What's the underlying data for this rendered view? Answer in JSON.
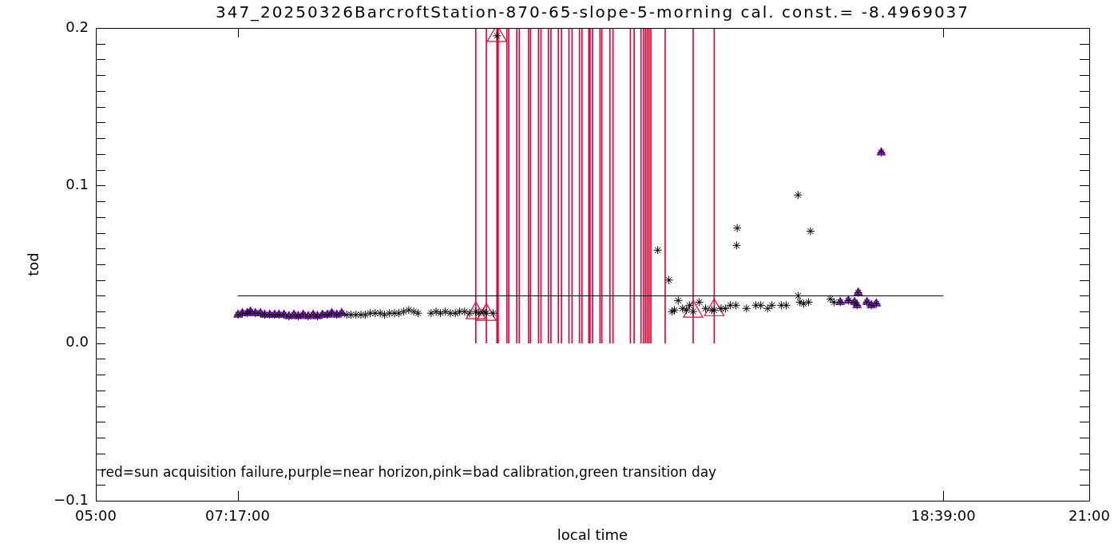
{
  "chart_data": {
    "type": "scatter",
    "title": "347_20250326BarcroftStation-870-65-slope-5-morning cal. const.= -8.4969037",
    "xlabel": "local time",
    "ylabel": "tod",
    "xlim": [
      5,
      21
    ],
    "xticks": [
      {
        "value": 5,
        "label": "05:00"
      },
      {
        "value": 7.2833,
        "label": "07:17:00"
      },
      {
        "value": 18.65,
        "label": "18:39:00"
      },
      {
        "value": 21,
        "label": "21:00"
      }
    ],
    "ylim": [
      -0.1,
      0.2
    ],
    "yticks": [
      {
        "value": -0.1,
        "label": "−0.1"
      },
      {
        "value": -0.09,
        "label": null
      },
      {
        "value": -0.08,
        "label": null
      },
      {
        "value": -0.07,
        "label": null
      },
      {
        "value": -0.06,
        "label": null
      },
      {
        "value": -0.05,
        "label": null
      },
      {
        "value": -0.04,
        "label": null
      },
      {
        "value": -0.03,
        "label": null
      },
      {
        "value": -0.02,
        "label": null
      },
      {
        "value": -0.01,
        "label": null
      },
      {
        "value": 0,
        "label": "0.0"
      },
      {
        "value": 0.01,
        "label": null
      },
      {
        "value": 0.02,
        "label": null
      },
      {
        "value": 0.03,
        "label": null
      },
      {
        "value": 0.04,
        "label": null
      },
      {
        "value": 0.05,
        "label": null
      },
      {
        "value": 0.06,
        "label": null
      },
      {
        "value": 0.07,
        "label": null
      },
      {
        "value": 0.08,
        "label": null
      },
      {
        "value": 0.09,
        "label": null
      },
      0.1,
      {
        "value": 0.11,
        "label": null
      },
      {
        "value": 0.12,
        "label": null
      },
      {
        "value": 0.13,
        "label": null
      },
      {
        "value": 0.14,
        "label": null
      },
      {
        "value": 0.15,
        "label": null
      },
      {
        "value": 0.16,
        "label": null
      },
      {
        "value": 0.17,
        "label": null
      },
      {
        "value": 0.18,
        "label": null
      },
      {
        "value": 0.19,
        "label": null
      },
      0.2
    ],
    "marker": "cross",
    "annotations": [
      "red=sun acquisition failure,purple=near horizon,pink=bad calibration,green transition day"
    ],
    "series": [
      {
        "type": "bar",
        "color": "#e8003a",
        "x": [
          11.12,
          11.29,
          11.46,
          11.48,
          11.62,
          11.65,
          11.78,
          11.82,
          11.97,
          12.0,
          12.13,
          12.17,
          12.29,
          12.33,
          12.45,
          12.5,
          12.62,
          12.67,
          12.79,
          12.83,
          12.94,
          12.96,
          13.0,
          13.12,
          13.15,
          13.28,
          13.33,
          13.61,
          13.67,
          13.78,
          13.82,
          13.85,
          13.88,
          13.91,
          13.94,
          14.17,
          14.62,
          14.96
        ],
        "values": [
          0.2,
          0.2,
          0.2,
          0.2,
          0.2,
          0.2,
          0.2,
          0.2,
          0.2,
          0.2,
          0.2,
          0.2,
          0.2,
          0.2,
          0.2,
          0.2,
          0.2,
          0.2,
          0.2,
          0.2,
          0.2,
          0.2,
          0.2,
          0.2,
          0.2,
          0.2,
          0.2,
          0.2,
          0.2,
          0.2,
          0.2,
          0.2,
          0.2,
          0.2,
          0.2,
          0.2,
          0.2,
          0.2
        ]
      },
      {
        "type": "line",
        "color": "#000000",
        "marker": "none",
        "x": [
          7.2833,
          18.65
        ],
        "values": [
          0.03,
          0.03
        ]
      },
      {
        "color": "#e8003a",
        "marker": "triangle",
        "x": [
          11.12,
          11.29,
          11.46,
          14.62,
          14.96
        ],
        "values": [
          0.019,
          0.018,
          0.195,
          0.02,
          0.021
        ]
      },
      {
        "color": "#9400f0",
        "marker": "triangle",
        "x": [
          7.29,
          7.36,
          7.44,
          7.49,
          7.57,
          7.65,
          7.72,
          7.8,
          7.88,
          7.95,
          8.03,
          8.11,
          8.19,
          8.26,
          8.34,
          8.42,
          8.5,
          8.57,
          8.65,
          8.73,
          8.8,
          8.88,
          8.96,
          16.99,
          17.12,
          17.22,
          17.26,
          17.28,
          17.42,
          17.49,
          17.57,
          17.65
        ],
        "values": [
          0.018,
          0.019,
          0.019,
          0.02,
          0.019,
          0.019,
          0.018,
          0.018,
          0.018,
          0.018,
          0.018,
          0.017,
          0.018,
          0.017,
          0.018,
          0.017,
          0.018,
          0.017,
          0.018,
          0.018,
          0.019,
          0.018,
          0.019,
          0.026,
          0.027,
          0.026,
          0.024,
          0.032,
          0.026,
          0.024,
          0.025,
          0.121
        ]
      },
      {
        "color": "#000000",
        "x": [
          7.29,
          7.36,
          7.44,
          7.49,
          7.57,
          7.65,
          7.72,
          7.8,
          7.88,
          7.95,
          8.03,
          8.11,
          8.19,
          8.26,
          8.34,
          8.42,
          8.5,
          8.57,
          8.65,
          8.73,
          8.8,
          8.88,
          8.96,
          9.04,
          9.11,
          9.19,
          9.27,
          9.34,
          9.42,
          9.5,
          9.58,
          9.65,
          9.73,
          9.81,
          9.88,
          9.96,
          10.04,
          10.12,
          10.19,
          10.4,
          10.48,
          10.55,
          10.63,
          10.71,
          10.79,
          10.86,
          10.94,
          11.02,
          11.12,
          11.17,
          11.25,
          11.29,
          11.4,
          11.46,
          14.05,
          14.23,
          14.28,
          14.32,
          14.38,
          14.45,
          14.51,
          14.56,
          14.62,
          14.72,
          14.82,
          14.92,
          14.96,
          15.07,
          15.14,
          15.22,
          15.31,
          15.32,
          15.33,
          15.48,
          15.63,
          15.71,
          15.82,
          15.89,
          16.04,
          16.12,
          16.31,
          16.31,
          16.34,
          16.4,
          16.48,
          16.51,
          16.83,
          16.89,
          16.99,
          17.12,
          17.22,
          17.26,
          17.28,
          17.42,
          17.49,
          17.57,
          17.65
        ],
        "values": [
          0.018,
          0.019,
          0.019,
          0.02,
          0.019,
          0.019,
          0.018,
          0.018,
          0.018,
          0.018,
          0.018,
          0.017,
          0.018,
          0.017,
          0.018,
          0.017,
          0.018,
          0.017,
          0.018,
          0.018,
          0.019,
          0.018,
          0.019,
          0.018,
          0.018,
          0.018,
          0.018,
          0.018,
          0.019,
          0.019,
          0.019,
          0.018,
          0.019,
          0.019,
          0.019,
          0.02,
          0.021,
          0.02,
          0.019,
          0.019,
          0.02,
          0.019,
          0.02,
          0.019,
          0.019,
          0.02,
          0.02,
          0.019,
          0.02,
          0.019,
          0.02,
          0.019,
          0.019,
          0.195,
          0.059,
          0.04,
          0.02,
          0.021,
          0.027,
          0.022,
          0.021,
          0.024,
          0.02,
          0.026,
          0.022,
          0.021,
          0.021,
          0.022,
          0.022,
          0.024,
          0.024,
          0.062,
          0.073,
          0.022,
          0.024,
          0.024,
          0.022,
          0.024,
          0.024,
          0.024,
          0.094,
          0.03,
          0.026,
          0.025,
          0.026,
          0.071,
          0.028,
          0.026,
          0.026,
          0.027,
          0.026,
          0.024,
          0.032,
          0.026,
          0.024,
          0.025,
          0.121
        ]
      }
    ]
  }
}
